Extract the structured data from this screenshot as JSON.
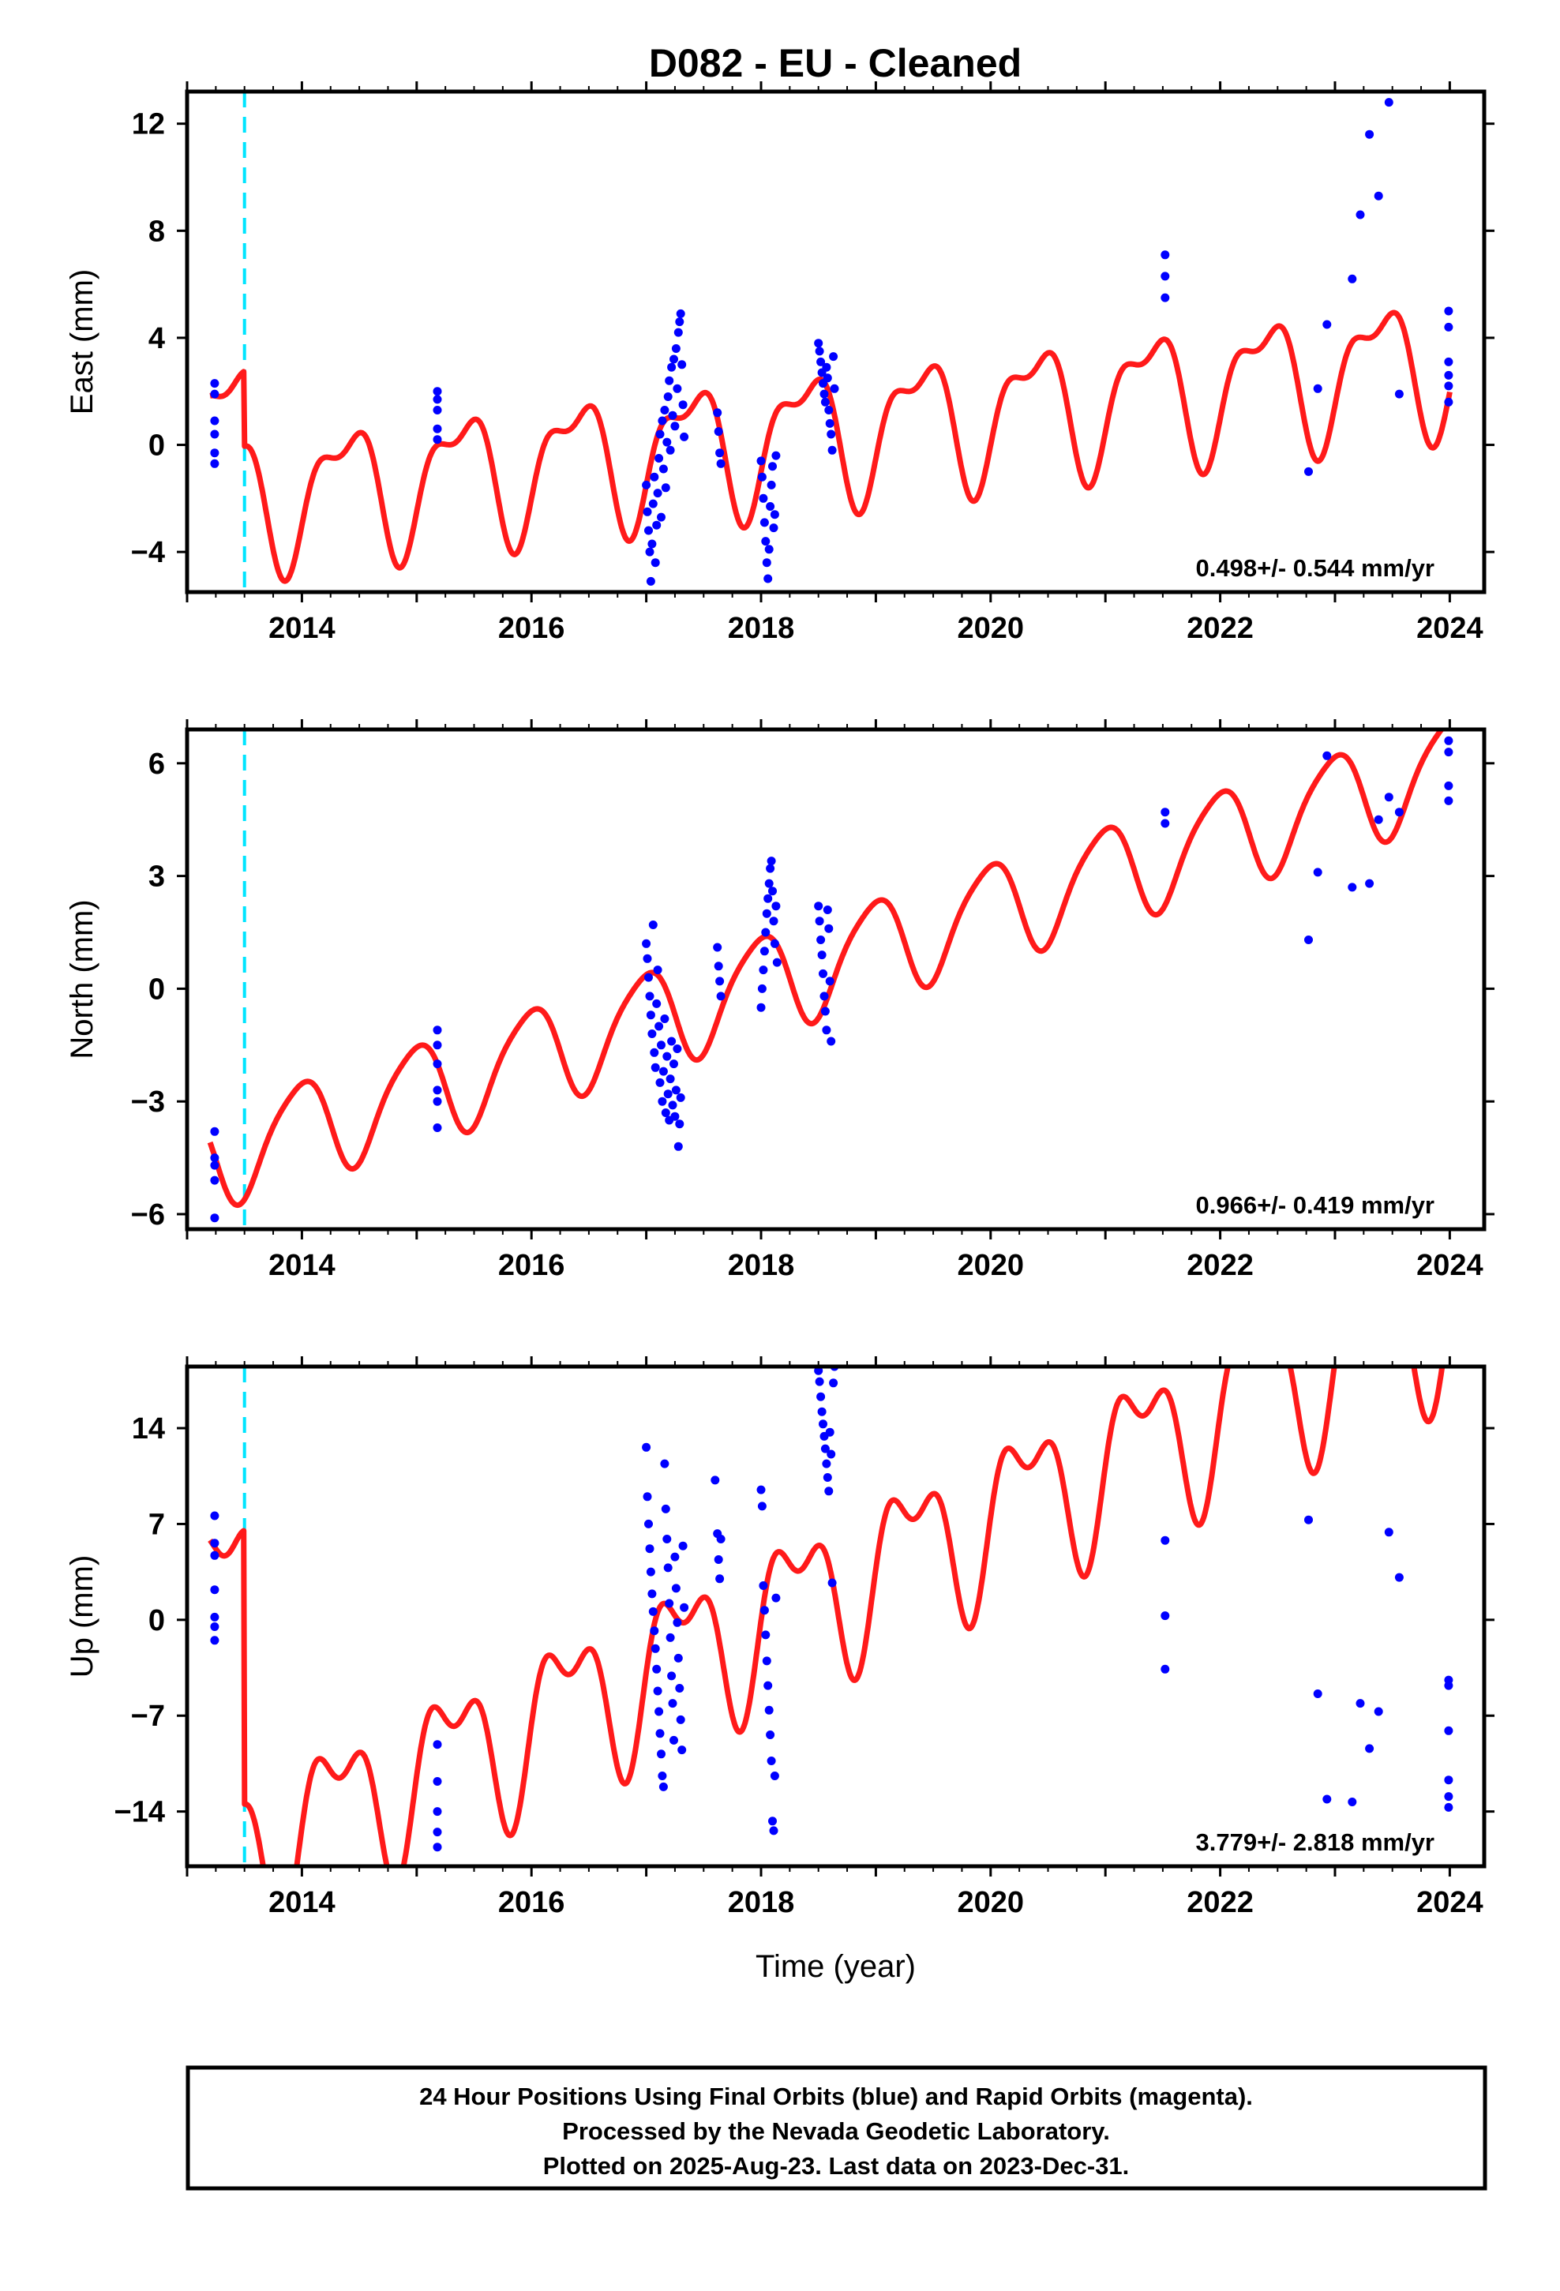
{
  "chart_title": "D082  - EU - Cleaned",
  "colors": {
    "model": "#ff1a1a",
    "points": "#0000ff",
    "marker": "#00e5ff",
    "frame": "#000000"
  },
  "footer": {
    "line1": "24 Hour Positions Using Final Orbits (blue) and Rapid Orbits (magenta).",
    "line2": "Processed by the Nevada Geodetic Laboratory.",
    "line3": "Plotted on 2025-Aug-23. Last data on 2023-Dec-31."
  },
  "chart_data": [
    {
      "type": "scatter",
      "xlabel": "",
      "ylabel": "East (mm)",
      "rate_text": "0.498+/- 0.544 mm/yr",
      "xlim": [
        2013.0,
        2024.3
      ],
      "ylim": [
        -5.5,
        13.2
      ],
      "xticks": [
        2014,
        2016,
        2018,
        2020,
        2022,
        2024
      ],
      "yticks": [
        -4,
        0,
        4,
        8,
        12
      ],
      "ytick_labels": [
        "−4",
        "0",
        "4",
        "8",
        "12"
      ],
      "event_line_x": 2013.5,
      "model": {
        "t0": 2013.2,
        "t1": 2024.0,
        "intercept": 0.6,
        "rate": 0.498,
        "annual_sin": 1.6,
        "annual_cos": -1.6,
        "semiannual_sin": 0.9,
        "semiannual_cos": 0.4,
        "offsets": [
          {
            "t": 2013.5,
            "dy": -2.8
          }
        ]
      },
      "points": [
        [
          2013.24,
          2.3
        ],
        [
          2013.24,
          1.9
        ],
        [
          2013.24,
          0.9
        ],
        [
          2013.24,
          0.4
        ],
        [
          2013.24,
          -0.3
        ],
        [
          2013.24,
          -0.7
        ],
        [
          2015.18,
          2.0
        ],
        [
          2015.18,
          1.7
        ],
        [
          2015.18,
          1.3
        ],
        [
          2015.18,
          0.6
        ],
        [
          2015.18,
          0.2
        ],
        [
          2017.0,
          -1.5
        ],
        [
          2017.01,
          -2.5
        ],
        [
          2017.02,
          -3.2
        ],
        [
          2017.03,
          -4.0
        ],
        [
          2017.04,
          -5.1
        ],
        [
          2017.05,
          -3.7
        ],
        [
          2017.06,
          -2.2
        ],
        [
          2017.07,
          -1.2
        ],
        [
          2017.08,
          -4.4
        ],
        [
          2017.09,
          -3.0
        ],
        [
          2017.1,
          -1.8
        ],
        [
          2017.11,
          -0.5
        ],
        [
          2017.12,
          0.4
        ],
        [
          2017.13,
          -2.7
        ],
        [
          2017.14,
          0.9
        ],
        [
          2017.15,
          -0.9
        ],
        [
          2017.16,
          1.3
        ],
        [
          2017.17,
          -1.6
        ],
        [
          2017.18,
          0.1
        ],
        [
          2017.19,
          1.8
        ],
        [
          2017.2,
          2.4
        ],
        [
          2017.21,
          -0.2
        ],
        [
          2017.22,
          2.9
        ],
        [
          2017.23,
          1.1
        ],
        [
          2017.24,
          3.2
        ],
        [
          2017.25,
          0.7
        ],
        [
          2017.26,
          3.6
        ],
        [
          2017.27,
          2.1
        ],
        [
          2017.28,
          4.2
        ],
        [
          2017.29,
          4.6
        ],
        [
          2017.3,
          4.9
        ],
        [
          2017.31,
          3.0
        ],
        [
          2017.32,
          1.5
        ],
        [
          2017.33,
          0.3
        ],
        [
          2017.62,
          1.2
        ],
        [
          2017.63,
          0.5
        ],
        [
          2017.64,
          -0.3
        ],
        [
          2017.65,
          -0.7
        ],
        [
          2018.0,
          -0.6
        ],
        [
          2018.01,
          -1.2
        ],
        [
          2018.02,
          -2.0
        ],
        [
          2018.03,
          -2.9
        ],
        [
          2018.04,
          -3.6
        ],
        [
          2018.05,
          -4.4
        ],
        [
          2018.06,
          -5.0
        ],
        [
          2018.07,
          -3.9
        ],
        [
          2018.08,
          -2.3
        ],
        [
          2018.09,
          -1.5
        ],
        [
          2018.1,
          -0.8
        ],
        [
          2018.11,
          -3.1
        ],
        [
          2018.12,
          -2.6
        ],
        [
          2018.13,
          -0.4
        ],
        [
          2018.5,
          3.8
        ],
        [
          2018.51,
          3.5
        ],
        [
          2018.52,
          3.1
        ],
        [
          2018.53,
          2.7
        ],
        [
          2018.54,
          2.3
        ],
        [
          2018.55,
          1.9
        ],
        [
          2018.56,
          1.6
        ],
        [
          2018.57,
          2.9
        ],
        [
          2018.58,
          2.5
        ],
        [
          2018.59,
          1.3
        ],
        [
          2018.6,
          0.8
        ],
        [
          2018.61,
          0.4
        ],
        [
          2018.62,
          -0.2
        ],
        [
          2018.63,
          3.3
        ],
        [
          2018.64,
          2.1
        ],
        [
          2021.52,
          7.1
        ],
        [
          2021.52,
          6.3
        ],
        [
          2021.52,
          5.5
        ],
        [
          2022.77,
          -1.0
        ],
        [
          2022.85,
          2.1
        ],
        [
          2022.93,
          4.5
        ],
        [
          2023.15,
          6.2
        ],
        [
          2023.22,
          8.6
        ],
        [
          2023.3,
          11.6
        ],
        [
          2023.38,
          9.3
        ],
        [
          2023.47,
          12.8
        ],
        [
          2023.56,
          1.9
        ],
        [
          2023.99,
          5.0
        ],
        [
          2023.99,
          4.4
        ],
        [
          2023.99,
          3.1
        ],
        [
          2023.99,
          2.6
        ],
        [
          2023.99,
          2.2
        ],
        [
          2023.99,
          1.6
        ]
      ]
    },
    {
      "type": "scatter",
      "xlabel": "",
      "ylabel": "North (mm)",
      "rate_text": "0.966+/- 0.419 mm/yr",
      "xlim": [
        2013.0,
        2024.3
      ],
      "ylim": [
        -6.4,
        6.9
      ],
      "xticks": [
        2014,
        2016,
        2018,
        2020,
        2022,
        2024
      ],
      "yticks": [
        -6,
        -3,
        0,
        3,
        6
      ],
      "ytick_labels": [
        "−6",
        "−3",
        "0",
        "3",
        "6"
      ],
      "event_line_x": 2013.5,
      "model": {
        "t0": 2013.2,
        "t1": 2024.0,
        "intercept": -4.5,
        "rate": 0.966,
        "annual_sin": -0.2,
        "annual_cos": 1.3,
        "semiannual_sin": 0.2,
        "semiannual_cos": -0.1,
        "offsets": []
      },
      "points": [
        [
          2013.24,
          -3.8
        ],
        [
          2013.24,
          -4.5
        ],
        [
          2013.24,
          -4.7
        ],
        [
          2013.24,
          -5.1
        ],
        [
          2013.24,
          -6.1
        ],
        [
          2015.18,
          -1.1
        ],
        [
          2015.18,
          -1.5
        ],
        [
          2015.18,
          -2.0
        ],
        [
          2015.18,
          -2.7
        ],
        [
          2015.18,
          -3.0
        ],
        [
          2015.18,
          -3.7
        ],
        [
          2017.0,
          1.2
        ],
        [
          2017.01,
          0.8
        ],
        [
          2017.02,
          0.3
        ],
        [
          2017.03,
          -0.2
        ],
        [
          2017.04,
          -0.7
        ],
        [
          2017.05,
          -1.2
        ],
        [
          2017.06,
          1.7
        ],
        [
          2017.07,
          -1.7
        ],
        [
          2017.08,
          -2.1
        ],
        [
          2017.09,
          -0.4
        ],
        [
          2017.1,
          0.5
        ],
        [
          2017.11,
          -1.0
        ],
        [
          2017.12,
          -2.5
        ],
        [
          2017.13,
          -1.5
        ],
        [
          2017.14,
          -3.0
        ],
        [
          2017.15,
          -2.2
        ],
        [
          2017.16,
          -0.8
        ],
        [
          2017.17,
          -3.3
        ],
        [
          2017.18,
          -1.8
        ],
        [
          2017.19,
          -2.8
        ],
        [
          2017.2,
          -3.5
        ],
        [
          2017.21,
          -2.4
        ],
        [
          2017.22,
          -1.4
        ],
        [
          2017.23,
          -3.1
        ],
        [
          2017.24,
          -2.0
        ],
        [
          2017.25,
          -3.4
        ],
        [
          2017.26,
          -2.7
        ],
        [
          2017.27,
          -1.6
        ],
        [
          2017.28,
          -4.2
        ],
        [
          2017.29,
          -3.6
        ],
        [
          2017.3,
          -2.9
        ],
        [
          2017.62,
          1.1
        ],
        [
          2017.63,
          0.6
        ],
        [
          2017.64,
          0.2
        ],
        [
          2017.65,
          -0.2
        ],
        [
          2018.0,
          -0.5
        ],
        [
          2018.01,
          0.0
        ],
        [
          2018.02,
          0.5
        ],
        [
          2018.03,
          1.0
        ],
        [
          2018.04,
          1.5
        ],
        [
          2018.05,
          2.0
        ],
        [
          2018.06,
          2.4
        ],
        [
          2018.07,
          2.8
        ],
        [
          2018.08,
          3.2
        ],
        [
          2018.09,
          3.4
        ],
        [
          2018.1,
          2.6
        ],
        [
          2018.11,
          1.8
        ],
        [
          2018.12,
          1.2
        ],
        [
          2018.13,
          2.2
        ],
        [
          2018.14,
          0.7
        ],
        [
          2018.5,
          2.2
        ],
        [
          2018.51,
          1.8
        ],
        [
          2018.52,
          1.3
        ],
        [
          2018.53,
          0.9
        ],
        [
          2018.54,
          0.4
        ],
        [
          2018.55,
          -0.2
        ],
        [
          2018.56,
          -0.6
        ],
        [
          2018.57,
          -1.1
        ],
        [
          2018.58,
          2.1
        ],
        [
          2018.59,
          1.6
        ],
        [
          2018.6,
          0.2
        ],
        [
          2018.61,
          -1.4
        ],
        [
          2021.52,
          4.7
        ],
        [
          2021.52,
          4.4
        ],
        [
          2022.77,
          1.3
        ],
        [
          2022.85,
          3.1
        ],
        [
          2022.93,
          6.2
        ],
        [
          2023.15,
          2.7
        ],
        [
          2023.3,
          2.8
        ],
        [
          2023.38,
          4.5
        ],
        [
          2023.47,
          5.1
        ],
        [
          2023.56,
          4.7
        ],
        [
          2023.99,
          6.6
        ],
        [
          2023.99,
          6.3
        ],
        [
          2023.99,
          5.4
        ],
        [
          2023.99,
          5.0
        ]
      ]
    },
    {
      "type": "scatter",
      "xlabel": "Time (year)",
      "ylabel": "Up (mm)",
      "rate_text": "3.779+/- 2.818 mm/yr",
      "xlim": [
        2013.0,
        2024.3
      ],
      "ylim": [
        -18.0,
        18.5
      ],
      "xticks": [
        2014,
        2016,
        2018,
        2020,
        2022,
        2024
      ],
      "yticks": [
        -14,
        -7,
        0,
        7,
        14
      ],
      "ytick_labels": [
        "−14",
        "−7",
        "0",
        "7",
        "14"
      ],
      "event_line_x": 2013.5,
      "model": {
        "t0": 2013.2,
        "t1": 2024.0,
        "intercept": 2.0,
        "rate": 3.779,
        "annual_sin": 4.6,
        "annual_cos": -1.8,
        "semiannual_sin": 2.2,
        "semiannual_cos": 1.6,
        "offsets": [
          {
            "t": 2013.5,
            "dy": -20.0
          }
        ]
      },
      "points": [
        [
          2013.24,
          7.6
        ],
        [
          2013.24,
          5.6
        ],
        [
          2013.24,
          4.7
        ],
        [
          2013.24,
          2.2
        ],
        [
          2013.24,
          0.2
        ],
        [
          2013.24,
          -0.5
        ],
        [
          2013.24,
          -1.5
        ],
        [
          2015.18,
          -9.1
        ],
        [
          2015.18,
          -11.8
        ],
        [
          2015.18,
          -14.0
        ],
        [
          2015.18,
          -15.5
        ],
        [
          2015.18,
          -16.6
        ],
        [
          2017.0,
          12.6
        ],
        [
          2017.01,
          9.0
        ],
        [
          2017.02,
          7.0
        ],
        [
          2017.03,
          5.2
        ],
        [
          2017.04,
          3.5
        ],
        [
          2017.05,
          1.9
        ],
        [
          2017.06,
          0.6
        ],
        [
          2017.07,
          -0.8
        ],
        [
          2017.08,
          -2.1
        ],
        [
          2017.09,
          -3.6
        ],
        [
          2017.1,
          -5.2
        ],
        [
          2017.11,
          -6.7
        ],
        [
          2017.12,
          -8.3
        ],
        [
          2017.13,
          -9.8
        ],
        [
          2017.14,
          -11.4
        ],
        [
          2017.15,
          -12.2
        ],
        [
          2017.16,
          11.4
        ],
        [
          2017.17,
          8.1
        ],
        [
          2017.18,
          5.9
        ],
        [
          2017.19,
          3.8
        ],
        [
          2017.2,
          1.2
        ],
        [
          2017.21,
          -1.3
        ],
        [
          2017.22,
          -4.1
        ],
        [
          2017.23,
          -6.1
        ],
        [
          2017.24,
          -8.8
        ],
        [
          2017.25,
          4.6
        ],
        [
          2017.26,
          2.3
        ],
        [
          2017.27,
          -0.2
        ],
        [
          2017.28,
          -2.8
        ],
        [
          2017.29,
          -5.0
        ],
        [
          2017.3,
          -7.3
        ],
        [
          2017.31,
          -9.5
        ],
        [
          2017.32,
          5.4
        ],
        [
          2017.33,
          0.9
        ],
        [
          2017.6,
          10.2
        ],
        [
          2017.62,
          6.3
        ],
        [
          2017.63,
          4.4
        ],
        [
          2017.64,
          3.0
        ],
        [
          2017.65,
          5.9
        ],
        [
          2018.0,
          9.5
        ],
        [
          2018.01,
          8.3
        ],
        [
          2018.02,
          2.5
        ],
        [
          2018.03,
          0.7
        ],
        [
          2018.04,
          -1.1
        ],
        [
          2018.05,
          -3.0
        ],
        [
          2018.06,
          -4.8
        ],
        [
          2018.07,
          -6.6
        ],
        [
          2018.08,
          -8.4
        ],
        [
          2018.09,
          -10.3
        ],
        [
          2018.1,
          -14.7
        ],
        [
          2018.11,
          -15.4
        ],
        [
          2018.12,
          -11.4
        ],
        [
          2018.13,
          1.6
        ],
        [
          2018.5,
          18.2
        ],
        [
          2018.51,
          17.4
        ],
        [
          2018.52,
          16.3
        ],
        [
          2018.53,
          15.2
        ],
        [
          2018.54,
          14.3
        ],
        [
          2018.55,
          13.4
        ],
        [
          2018.56,
          12.5
        ],
        [
          2018.57,
          11.4
        ],
        [
          2018.58,
          10.4
        ],
        [
          2018.59,
          9.4
        ],
        [
          2018.6,
          13.7
        ],
        [
          2018.61,
          12.1
        ],
        [
          2018.62,
          2.7
        ],
        [
          2018.63,
          17.3
        ],
        [
          2018.64,
          18.5
        ],
        [
          2021.52,
          5.8
        ],
        [
          2021.52,
          0.3
        ],
        [
          2021.52,
          -3.6
        ],
        [
          2022.77,
          7.3
        ],
        [
          2022.85,
          -5.4
        ],
        [
          2022.93,
          -13.1
        ],
        [
          2023.15,
          -13.3
        ],
        [
          2023.22,
          -6.1
        ],
        [
          2023.3,
          -9.4
        ],
        [
          2023.38,
          -6.7
        ],
        [
          2023.47,
          6.4
        ],
        [
          2023.56,
          3.1
        ],
        [
          2023.99,
          -4.4
        ],
        [
          2023.99,
          -4.8
        ],
        [
          2023.99,
          -8.1
        ],
        [
          2023.99,
          -11.7
        ],
        [
          2023.99,
          -12.9
        ],
        [
          2023.99,
          -13.7
        ]
      ]
    }
  ]
}
